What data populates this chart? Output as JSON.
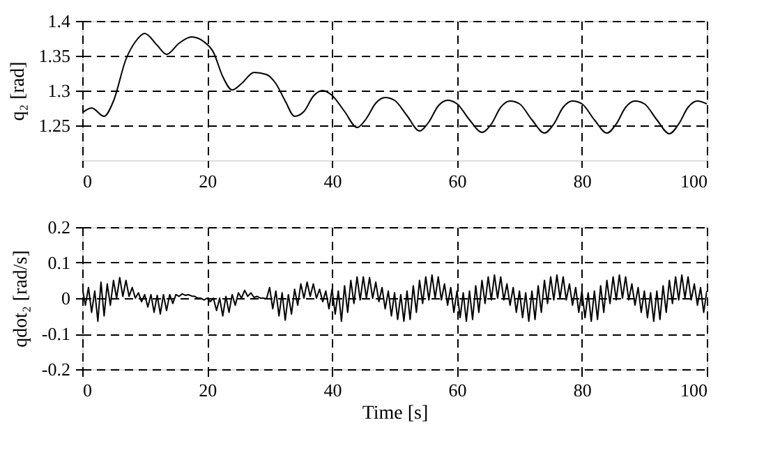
{
  "chart_data": [
    {
      "type": "line",
      "ylabel": "q₂ [rad]",
      "xlim": [
        0,
        100
      ],
      "xticks": [
        0,
        20,
        40,
        60,
        80,
        100
      ],
      "ylim": [
        1.2,
        1.4
      ],
      "yticks": [
        1.25,
        1.3,
        1.35,
        1.4
      ],
      "grid": true,
      "line_style": "solid",
      "marker": "none",
      "series": [
        {
          "color": "#000000",
          "x": [
            0,
            1.5,
            3.5,
            5,
            7,
            8.5,
            10,
            12,
            13.5,
            15.5,
            17.5,
            19.5,
            21,
            22.5,
            24,
            25.5,
            27.5,
            29.5,
            31,
            32.5,
            34,
            35.5,
            37,
            38.5,
            40,
            42,
            44,
            45.5,
            47,
            48.5,
            50,
            52,
            54,
            55.5,
            57,
            58.5,
            60,
            62,
            64,
            65.5,
            67,
            68.5,
            70,
            72,
            74,
            75.5,
            77,
            78.5,
            80,
            82,
            84,
            85.5,
            87,
            88.5,
            90,
            92,
            94,
            95.5,
            97,
            98.5,
            100
          ],
          "values": [
            1.268,
            1.275,
            1.263,
            1.285,
            1.345,
            1.37,
            1.382,
            1.365,
            1.352,
            1.368,
            1.377,
            1.37,
            1.355,
            1.32,
            1.301,
            1.31,
            1.326,
            1.323,
            1.31,
            1.285,
            1.263,
            1.27,
            1.292,
            1.3,
            1.293,
            1.27,
            1.247,
            1.26,
            1.282,
            1.29,
            1.286,
            1.264,
            1.242,
            1.255,
            1.278,
            1.286,
            1.281,
            1.258,
            1.24,
            1.252,
            1.276,
            1.285,
            1.281,
            1.258,
            1.239,
            1.252,
            1.276,
            1.285,
            1.281,
            1.258,
            1.239,
            1.252,
            1.276,
            1.285,
            1.281,
            1.258,
            1.238,
            1.252,
            1.276,
            1.285,
            1.281
          ]
        }
      ]
    },
    {
      "type": "line",
      "xlabel": "Time [s]",
      "ylabel": "qdot₂ [rad/s]",
      "xlim": [
        0,
        100
      ],
      "xticks": [
        0,
        20,
        40,
        60,
        80,
        100
      ],
      "ylim": [
        -0.2,
        0.2
      ],
      "yticks": [
        -0.2,
        -0.1,
        0,
        0.1,
        0.2
      ],
      "grid": true,
      "line_style": "solid",
      "marker": "none",
      "series": [
        {
          "color": "#000000",
          "x": [
            0,
            0.5,
            1,
            1.5,
            2,
            2.5,
            3,
            3.5,
            4,
            4.5,
            5,
            5.5,
            6,
            6.5,
            7,
            7.5,
            8,
            8.5,
            9,
            9.5,
            10,
            10.5,
            11,
            11.5,
            12,
            12.5,
            13,
            13.5,
            14,
            14.5,
            15,
            15.5,
            16,
            16.5,
            17,
            17.5,
            18,
            18.5,
            19,
            19.5,
            20,
            20.5,
            21,
            21.5,
            22,
            22.5,
            23,
            23.5,
            24,
            24.5,
            25,
            25.5,
            26,
            26.5,
            27,
            27.5,
            28,
            28.5,
            29,
            29.5,
            30,
            30.5,
            31,
            31.5,
            32,
            32.5,
            33,
            33.5,
            34,
            34.5,
            35,
            35.5,
            36,
            36.5,
            37,
            37.5,
            38,
            38.5,
            39,
            39.5,
            40,
            40.5,
            41,
            41.5,
            42,
            42.5,
            43,
            43.5,
            44,
            44.5,
            45,
            45.5,
            46,
            46.5,
            47,
            47.5,
            48,
            48.5,
            49,
            49.5,
            50,
            50.5,
            51,
            51.5,
            52,
            52.5,
            53,
            53.5,
            54,
            54.5,
            55,
            55.5,
            56,
            56.5,
            57,
            57.5,
            58,
            58.5,
            59,
            59.5,
            60,
            60.5,
            61,
            61.5,
            62,
            62.5,
            63,
            63.5,
            64,
            64.5,
            65,
            65.5,
            66,
            66.5,
            67,
            67.5,
            68,
            68.5,
            69,
            69.5,
            70,
            70.5,
            71,
            71.5,
            72,
            72.5,
            73,
            73.5,
            74,
            74.5,
            75,
            75.5,
            76,
            76.5,
            77,
            77.5,
            78,
            78.5,
            79,
            79.5,
            80,
            80.5,
            81,
            81.5,
            82,
            82.5,
            83,
            83.5,
            84,
            84.5,
            85,
            85.5,
            86,
            86.5,
            87,
            87.5,
            88,
            88.5,
            89,
            89.5,
            90,
            90.5,
            91,
            91.5,
            92,
            92.5,
            93,
            93.5,
            94,
            94.5,
            95,
            95.5,
            96,
            96.5,
            97,
            97.5,
            98,
            98.5,
            99,
            99.5,
            100
          ],
          "values": [
            0.03,
            -0.02,
            0.03,
            -0.04,
            0.02,
            -0.065,
            0.045,
            -0.05,
            0.04,
            -0.02,
            0.05,
            0.0,
            0.058,
            0.005,
            0.05,
            0.005,
            0.03,
            0.0,
            0.015,
            -0.01,
            0.01,
            -0.025,
            0.01,
            -0.04,
            0.008,
            -0.045,
            0.01,
            -0.035,
            0.01,
            -0.015,
            0.01,
            0.005,
            0.012,
            0.008,
            0.01,
            0.006,
            0.005,
            0.0,
            0.0,
            -0.005,
            0.0,
            -0.01,
            0.0,
            -0.035,
            0.0,
            -0.05,
            0.005,
            -0.04,
            0.01,
            -0.02,
            0.015,
            0.0,
            0.022,
            0.005,
            0.015,
            0.002,
            0.005,
            0.0,
            0.0,
            -0.002,
            0.03,
            -0.03,
            0.02,
            -0.05,
            0.015,
            -0.062,
            0.01,
            -0.045,
            0.025,
            -0.02,
            0.04,
            0.0,
            0.045,
            0.005,
            0.04,
            0.0,
            0.025,
            -0.01,
            0.02,
            -0.03,
            0.025,
            -0.045,
            0.02,
            -0.065,
            0.035,
            -0.04,
            0.05,
            -0.015,
            0.06,
            -0.005,
            0.06,
            0.0,
            0.058,
            0.0,
            0.045,
            -0.01,
            0.03,
            -0.03,
            0.02,
            -0.05,
            0.015,
            -0.06,
            0.01,
            -0.065,
            0.02,
            -0.06,
            0.035,
            -0.04,
            0.05,
            -0.015,
            0.06,
            -0.005,
            0.065,
            0.0,
            0.06,
            -0.005,
            0.04,
            -0.02,
            0.03,
            -0.04,
            0.02,
            -0.055,
            0.015,
            -0.065,
            0.02,
            -0.06,
            0.035,
            -0.04,
            0.05,
            -0.015,
            0.06,
            -0.005,
            0.065,
            0.0,
            0.06,
            -0.005,
            0.04,
            -0.02,
            0.03,
            -0.04,
            0.02,
            -0.055,
            0.015,
            -0.065,
            0.02,
            -0.06,
            0.035,
            -0.04,
            0.05,
            -0.015,
            0.06,
            -0.005,
            0.065,
            0.0,
            0.06,
            -0.005,
            0.04,
            -0.02,
            0.03,
            -0.04,
            0.02,
            -0.055,
            0.015,
            -0.065,
            0.02,
            -0.06,
            0.035,
            -0.04,
            0.05,
            -0.015,
            0.06,
            -0.005,
            0.065,
            0.0,
            0.06,
            -0.005,
            0.04,
            -0.02,
            0.03,
            -0.04,
            0.02,
            -0.055,
            0.015,
            -0.065,
            0.02,
            -0.06,
            0.035,
            -0.04,
            0.05,
            -0.015,
            0.06,
            -0.005,
            0.065,
            0.0,
            0.06,
            -0.005,
            0.04,
            -0.02,
            0.03,
            -0.04,
            0.02
          ]
        }
      ]
    }
  ]
}
